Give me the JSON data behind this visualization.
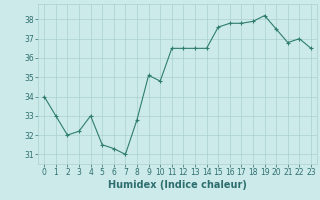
{
  "x": [
    0,
    1,
    2,
    3,
    4,
    5,
    6,
    7,
    8,
    9,
    10,
    11,
    12,
    13,
    14,
    15,
    16,
    17,
    18,
    19,
    20,
    21,
    22,
    23
  ],
  "y": [
    34.0,
    33.0,
    32.0,
    32.2,
    33.0,
    31.5,
    31.3,
    31.0,
    32.8,
    35.1,
    34.8,
    36.5,
    36.5,
    36.5,
    36.5,
    37.6,
    37.8,
    37.8,
    37.9,
    38.2,
    37.5,
    36.8,
    37.0,
    36.5
  ],
  "line_color": "#2e7d6e",
  "marker": "+",
  "marker_color": "#2e7d6e",
  "bg_color": "#cceaea",
  "grid_color": "#aacfcf",
  "xlabel": "Humidex (Indice chaleur)",
  "xlim": [
    -0.5,
    23.5
  ],
  "ylim": [
    30.5,
    38.8
  ],
  "yticks": [
    31,
    32,
    33,
    34,
    35,
    36,
    37,
    38
  ],
  "xticks": [
    0,
    1,
    2,
    3,
    4,
    5,
    6,
    7,
    8,
    9,
    10,
    11,
    12,
    13,
    14,
    15,
    16,
    17,
    18,
    19,
    20,
    21,
    22,
    23
  ],
  "tick_color": "#2e6e6e",
  "tick_fontsize": 5.5,
  "xlabel_fontsize": 7,
  "linewidth": 0.8,
  "markersize": 3.5
}
